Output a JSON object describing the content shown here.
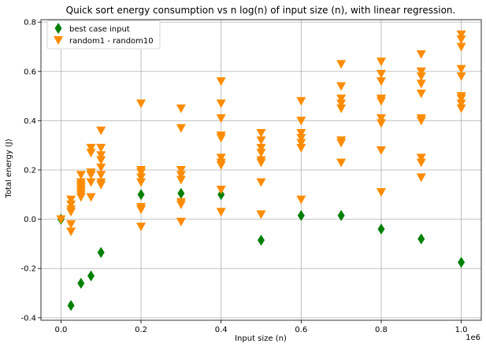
{
  "chart_data": {
    "type": "scatter",
    "title": "Quick sort energy consumption vs n log(n) of input size (n), with linear regression.",
    "xlabel": "Input size (n)",
    "ylabel": "Total energy (J)",
    "x_offset_text": "1e6",
    "xlim": [
      -50000,
      1050000
    ],
    "ylim": [
      -0.41,
      0.81
    ],
    "xticks": [
      0,
      200000,
      400000,
      600000,
      800000,
      1000000
    ],
    "xtick_labels": [
      "0.0",
      "0.2",
      "0.4",
      "0.6",
      "0.8",
      "1.0"
    ],
    "yticks": [
      -0.4,
      -0.2,
      0.0,
      0.2,
      0.4,
      0.6,
      0.8
    ],
    "ytick_labels": [
      "-0.4",
      "-0.2",
      "0.0",
      "0.2",
      "0.4",
      "0.6",
      "0.8"
    ],
    "grid": true,
    "legend_position": "top-left",
    "series": [
      {
        "name": "best case input",
        "marker": "thin_diamond",
        "color": "#008000",
        "points": [
          [
            0,
            0.0
          ],
          [
            25000,
            -0.35
          ],
          [
            50000,
            -0.26
          ],
          [
            75000,
            -0.23
          ],
          [
            100000,
            -0.135
          ],
          [
            200000,
            0.1
          ],
          [
            300000,
            0.105
          ],
          [
            400000,
            0.1
          ],
          [
            500000,
            -0.085
          ],
          [
            600000,
            0.015
          ],
          [
            700000,
            0.015
          ],
          [
            800000,
            -0.04
          ],
          [
            900000,
            -0.08
          ],
          [
            1000000,
            -0.175
          ]
        ]
      },
      {
        "name": "random1 - random10",
        "marker": "triangle_down",
        "color": "#ff8c00",
        "points": [
          [
            0,
            0.0
          ],
          [
            25000,
            0.08
          ],
          [
            25000,
            0.06
          ],
          [
            25000,
            0.04
          ],
          [
            25000,
            -0.02
          ],
          [
            25000,
            -0.05
          ],
          [
            25000,
            0.03
          ],
          [
            50000,
            0.18
          ],
          [
            50000,
            0.15
          ],
          [
            50000,
            0.13
          ],
          [
            50000,
            0.12
          ],
          [
            50000,
            0.1
          ],
          [
            50000,
            0.09
          ],
          [
            50000,
            0.14
          ],
          [
            50000,
            0.11
          ],
          [
            75000,
            0.29
          ],
          [
            75000,
            0.27
          ],
          [
            75000,
            0.19
          ],
          [
            75000,
            0.18
          ],
          [
            75000,
            0.15
          ],
          [
            75000,
            0.09
          ],
          [
            100000,
            0.36
          ],
          [
            100000,
            0.29
          ],
          [
            100000,
            0.26
          ],
          [
            100000,
            0.24
          ],
          [
            100000,
            0.21
          ],
          [
            100000,
            0.18
          ],
          [
            100000,
            0.15
          ],
          [
            100000,
            0.14
          ],
          [
            200000,
            0.47
          ],
          [
            200000,
            0.2
          ],
          [
            200000,
            0.19
          ],
          [
            200000,
            0.17
          ],
          [
            200000,
            0.15
          ],
          [
            200000,
            0.05
          ],
          [
            200000,
            0.04
          ],
          [
            200000,
            -0.03
          ],
          [
            300000,
            0.45
          ],
          [
            300000,
            0.37
          ],
          [
            300000,
            0.2
          ],
          [
            300000,
            0.18
          ],
          [
            300000,
            0.16
          ],
          [
            300000,
            0.07
          ],
          [
            300000,
            0.06
          ],
          [
            300000,
            -0.01
          ],
          [
            400000,
            0.56
          ],
          [
            400000,
            0.47
          ],
          [
            400000,
            0.41
          ],
          [
            400000,
            0.34
          ],
          [
            400000,
            0.33
          ],
          [
            400000,
            0.25
          ],
          [
            400000,
            0.23
          ],
          [
            400000,
            0.22
          ],
          [
            400000,
            0.12
          ],
          [
            400000,
            0.03
          ],
          [
            500000,
            0.35
          ],
          [
            500000,
            0.32
          ],
          [
            500000,
            0.29
          ],
          [
            500000,
            0.27
          ],
          [
            500000,
            0.24
          ],
          [
            500000,
            0.23
          ],
          [
            500000,
            0.15
          ],
          [
            500000,
            0.02
          ],
          [
            600000,
            0.48
          ],
          [
            600000,
            0.4
          ],
          [
            600000,
            0.35
          ],
          [
            600000,
            0.33
          ],
          [
            600000,
            0.31
          ],
          [
            600000,
            0.29
          ],
          [
            600000,
            0.08
          ],
          [
            700000,
            0.63
          ],
          [
            700000,
            0.54
          ],
          [
            700000,
            0.49
          ],
          [
            700000,
            0.47
          ],
          [
            700000,
            0.45
          ],
          [
            700000,
            0.32
          ],
          [
            700000,
            0.31
          ],
          [
            700000,
            0.23
          ],
          [
            800000,
            0.64
          ],
          [
            800000,
            0.59
          ],
          [
            800000,
            0.56
          ],
          [
            800000,
            0.49
          ],
          [
            800000,
            0.48
          ],
          [
            800000,
            0.41
          ],
          [
            800000,
            0.39
          ],
          [
            800000,
            0.28
          ],
          [
            800000,
            0.11
          ],
          [
            900000,
            0.67
          ],
          [
            900000,
            0.6
          ],
          [
            900000,
            0.58
          ],
          [
            900000,
            0.55
          ],
          [
            900000,
            0.51
          ],
          [
            900000,
            0.41
          ],
          [
            900000,
            0.4
          ],
          [
            900000,
            0.25
          ],
          [
            900000,
            0.23
          ],
          [
            900000,
            0.17
          ],
          [
            1000000,
            0.75
          ],
          [
            1000000,
            0.73
          ],
          [
            1000000,
            0.7
          ],
          [
            1000000,
            0.61
          ],
          [
            1000000,
            0.58
          ],
          [
            1000000,
            0.5
          ],
          [
            1000000,
            0.49
          ],
          [
            1000000,
            0.47
          ],
          [
            1000000,
            0.45
          ]
        ]
      }
    ]
  }
}
